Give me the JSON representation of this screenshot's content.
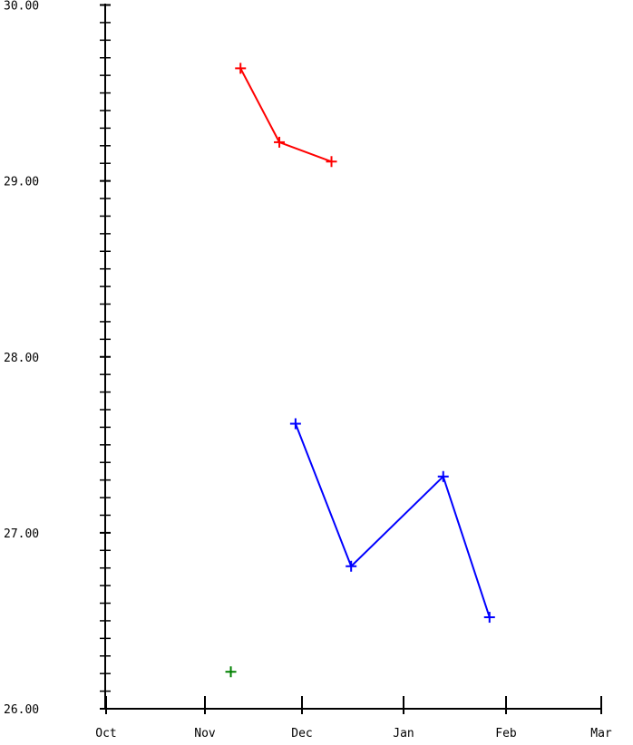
{
  "chart_data": {
    "type": "line",
    "title": "",
    "xlabel": "",
    "ylabel": "",
    "x_ticks": [
      "Oct",
      "Nov",
      "Dec",
      "Jan",
      "Feb",
      "Mar"
    ],
    "y_ticks": [
      "26.00",
      "27.00",
      "28.00",
      "29.00",
      "30.00"
    ],
    "ylim": [
      26.0,
      30.0
    ],
    "grid": false,
    "series": [
      {
        "color": "#ff0000",
        "marker": "plus",
        "points": [
          {
            "x": "2023-11-12",
            "y": 29.64
          },
          {
            "x": "2023-11-24",
            "y": 29.22
          },
          {
            "x": "2023-12-10",
            "y": 29.11
          }
        ]
      },
      {
        "color": "#0000ff",
        "marker": "plus",
        "points": [
          {
            "x": "2023-11-29",
            "y": 27.62
          },
          {
            "x": "2023-12-16",
            "y": 26.81
          },
          {
            "x": "2024-01-13",
            "y": 27.32
          },
          {
            "x": "2024-01-27",
            "y": 26.52
          }
        ]
      },
      {
        "color": "#008000",
        "marker": "plus",
        "points": [
          {
            "x": "2023-11-09",
            "y": 26.21
          }
        ]
      }
    ]
  }
}
